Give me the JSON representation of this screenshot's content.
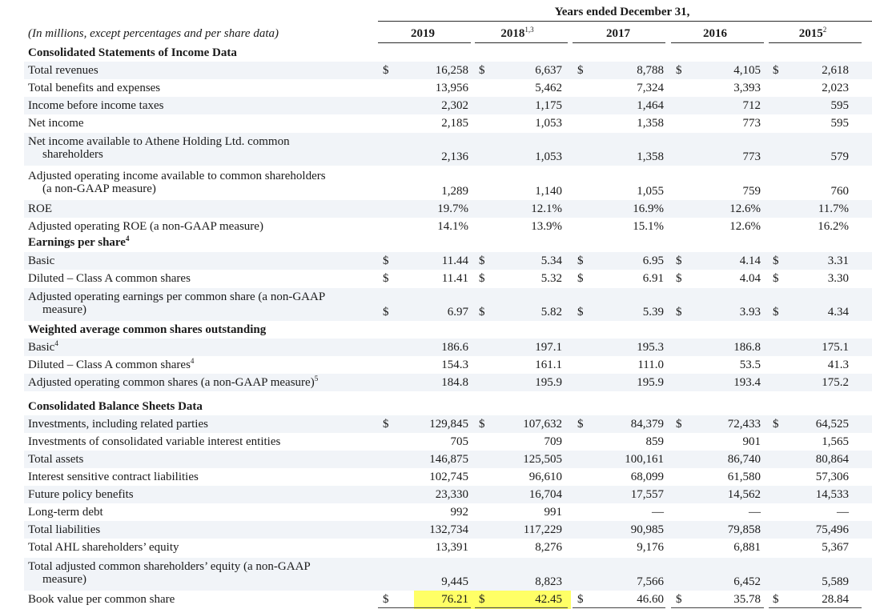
{
  "header": {
    "years_title": "Years ended December 31,",
    "caption": "(In millions, except percentages and per share data)",
    "columns": [
      {
        "year": "2019",
        "sup": ""
      },
      {
        "year": "2018",
        "sup": "1,3"
      },
      {
        "year": "2017",
        "sup": ""
      },
      {
        "year": "2016",
        "sup": ""
      },
      {
        "year": "2015",
        "sup": "2"
      }
    ]
  },
  "rows": [
    {
      "label": "Consolidated Statements of Income Data",
      "bold": true,
      "values": null
    },
    {
      "label": "Total revenues",
      "dollar": true,
      "values": [
        "16,258",
        "6,637",
        "8,788",
        "4,105",
        "2,618"
      ]
    },
    {
      "label": "Total benefits and expenses",
      "values": [
        "13,956",
        "5,462",
        "7,324",
        "3,393",
        "2,023"
      ]
    },
    {
      "label": "Income before income taxes",
      "values": [
        "2,302",
        "1,175",
        "1,464",
        "712",
        "595"
      ]
    },
    {
      "label": "Net income",
      "values": [
        "2,185",
        "1,053",
        "1,358",
        "773",
        "595"
      ]
    },
    {
      "label": "Net income available to Athene Holding Ltd. common",
      "label2": "shareholders",
      "values": [
        "2,136",
        "1,053",
        "1,358",
        "773",
        "579"
      ]
    },
    {
      "label": "Adjusted operating income available to common shareholders",
      "label2": "(a non-GAAP measure)",
      "values": [
        "1,289",
        "1,140",
        "1,055",
        "759",
        "760"
      ]
    },
    {
      "label": "ROE",
      "values": [
        "19.7%",
        "12.1%",
        "16.9%",
        "12.6%",
        "11.7%"
      ]
    },
    {
      "label": "Adjusted operating ROE (a non-GAAP measure)",
      "values": [
        "14.1%",
        "13.9%",
        "15.1%",
        "12.6%",
        "16.2%"
      ]
    },
    {
      "label": "Earnings per share",
      "sup": "4",
      "bold": true,
      "values": null
    },
    {
      "label": "Basic",
      "dollar": true,
      "values": [
        "11.44",
        "5.34",
        "6.95",
        "4.14",
        "3.31"
      ]
    },
    {
      "label": "Diluted – Class A common shares",
      "dollar": true,
      "values": [
        "11.41",
        "5.32",
        "6.91",
        "4.04",
        "3.30"
      ]
    },
    {
      "label": "Adjusted operating earnings per common share (a non-GAAP",
      "label2": "measure)",
      "dollar": true,
      "values": [
        "6.97",
        "5.82",
        "5.39",
        "3.93",
        "4.34"
      ]
    },
    {
      "label": "Weighted average common shares outstanding",
      "bold": true,
      "values": null
    },
    {
      "label": "Basic",
      "sup": "4",
      "values": [
        "186.6",
        "197.1",
        "195.3",
        "186.8",
        "175.1"
      ]
    },
    {
      "label": "Diluted – Class A common shares",
      "sup": "4",
      "values": [
        "154.3",
        "161.1",
        "111.0",
        "53.5",
        "41.3"
      ]
    },
    {
      "label": "Adjusted operating common shares (a non-GAAP measure)",
      "sup": "5",
      "values": [
        "184.8",
        "195.9",
        "195.9",
        "193.4",
        "175.2"
      ]
    },
    {
      "label": "Consolidated Balance Sheets Data",
      "bold": true,
      "values": null
    },
    {
      "label": "Investments, including related parties",
      "dollar": true,
      "values": [
        "129,845",
        "107,632",
        "84,379",
        "72,433",
        "64,525"
      ]
    },
    {
      "label": "Investments of consolidated variable interest entities",
      "values": [
        "705",
        "709",
        "859",
        "901",
        "1,565"
      ]
    },
    {
      "label": "Total assets",
      "values": [
        "146,875",
        "125,505",
        "100,161",
        "86,740",
        "80,864"
      ]
    },
    {
      "label": "Interest sensitive contract liabilities",
      "values": [
        "102,745",
        "96,610",
        "68,099",
        "61,580",
        "57,306"
      ]
    },
    {
      "label": "Future policy benefits",
      "values": [
        "23,330",
        "16,704",
        "17,557",
        "14,562",
        "14,533"
      ]
    },
    {
      "label": "Long-term debt",
      "values": [
        "992",
        "991",
        "—",
        "—",
        "—"
      ]
    },
    {
      "label": "Total liabilities",
      "values": [
        "132,734",
        "117,229",
        "90,985",
        "79,858",
        "75,496"
      ]
    },
    {
      "label": "Total AHL shareholders’ equity",
      "values": [
        "13,391",
        "8,276",
        "9,176",
        "6,881",
        "5,367"
      ]
    },
    {
      "label": "Total adjusted common shareholders’ equity (a non-GAAP",
      "label2": "measure)",
      "values": [
        "9,445",
        "8,823",
        "7,566",
        "6,452",
        "5,589"
      ]
    },
    {
      "label": "Book value per common share",
      "dollar": true,
      "values": [
        "76.21",
        "42.45",
        "46.60",
        "35.78",
        "28.84"
      ]
    }
  ],
  "dollar_sign": "$"
}
